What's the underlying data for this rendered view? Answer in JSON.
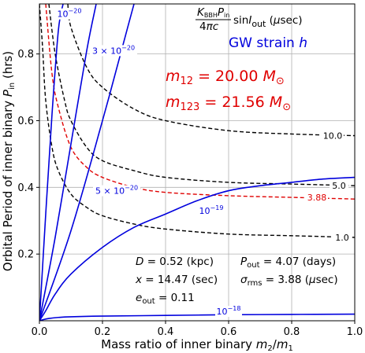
{
  "chart_data": {
    "type": "line",
    "xlabel": "Mass ratio of inner binary m2/m1",
    "ylabel": "Orbital Period of inner binary P_in (hrs)",
    "xlim": [
      0.0,
      1.0
    ],
    "ylim": [
      0.0,
      0.95
    ],
    "xticks": [
      "0.0",
      "0.2",
      "0.4",
      "0.6",
      "0.8",
      "1.0"
    ],
    "yticks": [
      "0.2",
      "0.4",
      "0.6",
      "0.8"
    ],
    "grid": true,
    "legend": {
      "black_title": "K_BBH P_in / 4πc sin I_out (μsec)",
      "blue_title": "GW strain h"
    },
    "mass_labels": [
      "m12 = 20.00 M⊙",
      "m123 = 21.56 M⊙"
    ],
    "parameters": [
      "D = 0.52 (kpc)",
      "x = 14.47 (sec)",
      "e_out = 0.11",
      "P_out = 4.07 (days)",
      "σ_rms = 3.88 (μsec)"
    ],
    "timing_contours": [
      {
        "label": "10.0",
        "color": "#000000",
        "style": "dashed",
        "x": [
          0.09,
          0.1,
          0.15,
          0.2,
          0.3,
          0.4,
          0.6,
          0.8,
          1.0
        ],
        "y": [
          0.95,
          0.88,
          0.76,
          0.7,
          0.635,
          0.6,
          0.57,
          0.56,
          0.555
        ]
      },
      {
        "label": "5.0",
        "color": "#000000",
        "style": "dashed",
        "x": [
          0.03,
          0.05,
          0.08,
          0.1,
          0.15,
          0.2,
          0.3,
          0.4,
          0.6,
          0.8,
          1.0
        ],
        "y": [
          0.95,
          0.8,
          0.66,
          0.6,
          0.52,
          0.48,
          0.45,
          0.43,
          0.415,
          0.41,
          0.405
        ]
      },
      {
        "label": "3.88",
        "color": "#e00000",
        "style": "dashed",
        "x": [
          0.02,
          0.04,
          0.06,
          0.1,
          0.15,
          0.2,
          0.3,
          0.4,
          0.6,
          0.8,
          1.0
        ],
        "y": [
          0.95,
          0.74,
          0.64,
          0.52,
          0.46,
          0.43,
          0.4,
          0.385,
          0.375,
          0.37,
          0.365
        ]
      },
      {
        "label": "1.0",
        "color": "#000000",
        "style": "dashed",
        "x": [
          0.0,
          0.01,
          0.02,
          0.04,
          0.06,
          0.1,
          0.15,
          0.2,
          0.3,
          0.4,
          0.6,
          0.8,
          1.0
        ],
        "y": [
          0.95,
          0.82,
          0.66,
          0.52,
          0.45,
          0.38,
          0.34,
          0.315,
          0.29,
          0.275,
          0.26,
          0.255,
          0.25
        ]
      }
    ],
    "strain_contours": [
      {
        "label": "1e-20",
        "color": "#0000dd",
        "x": [
          0.0,
          0.02,
          0.04,
          0.06,
          0.075
        ],
        "y": [
          0.0,
          0.32,
          0.62,
          0.87,
          0.95
        ]
      },
      {
        "label": "3e-20",
        "color": "#0000dd",
        "x": [
          0.0,
          0.05,
          0.1,
          0.15,
          0.18
        ],
        "y": [
          0.0,
          0.25,
          0.53,
          0.81,
          0.95
        ]
      },
      {
        "label": "5e-20",
        "color": "#0000dd",
        "x": [
          0.0,
          0.1,
          0.2,
          0.28,
          0.3
        ],
        "y": [
          0.0,
          0.27,
          0.6,
          0.88,
          0.95
        ]
      },
      {
        "label": "1e-19",
        "color": "#0000dd",
        "x": [
          0.0,
          0.02,
          0.05,
          0.1,
          0.2,
          0.3,
          0.4,
          0.5,
          0.6,
          0.7,
          0.8,
          0.9,
          1.0
        ],
        "y": [
          0.0,
          0.03,
          0.08,
          0.14,
          0.22,
          0.28,
          0.32,
          0.36,
          0.39,
          0.405,
          0.415,
          0.425,
          0.43
        ]
      },
      {
        "label": "1e-18",
        "color": "#0000dd",
        "x": [
          0.0,
          0.01,
          0.03,
          0.06,
          0.1,
          0.2,
          0.4,
          0.6,
          0.8,
          1.0
        ],
        "y": [
          0.0,
          0.003,
          0.007,
          0.01,
          0.012,
          0.014,
          0.016,
          0.018,
          0.019,
          0.02
        ]
      }
    ]
  }
}
